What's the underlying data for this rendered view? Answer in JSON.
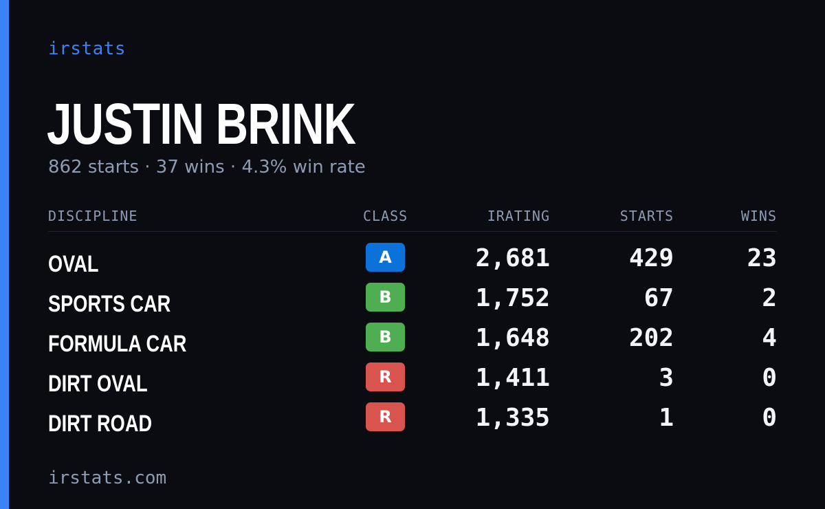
{
  "brand": {
    "label": "irstats",
    "color": "#3b82f6"
  },
  "player": {
    "name": "JUSTIN BRINK",
    "summary": "862 starts · 37 wins · 4.3% win rate"
  },
  "table": {
    "headers": {
      "discipline": "DISCIPLINE",
      "class": "CLASS",
      "irating": "IRATING",
      "starts": "STARTS",
      "wins": "WINS"
    },
    "rows": [
      {
        "discipline": "OVAL",
        "class": "A",
        "irating": "2,681",
        "starts": "429",
        "wins": "23"
      },
      {
        "discipline": "SPORTS CAR",
        "class": "B",
        "irating": "1,752",
        "starts": "67",
        "wins": "2"
      },
      {
        "discipline": "FORMULA CAR",
        "class": "B",
        "irating": "1,648",
        "starts": "202",
        "wins": "4"
      },
      {
        "discipline": "DIRT OVAL",
        "class": "R",
        "irating": "1,411",
        "starts": "3",
        "wins": "0"
      },
      {
        "discipline": "DIRT ROAD",
        "class": "R",
        "irating": "1,335",
        "starts": "1",
        "wins": "0"
      }
    ]
  },
  "class_colors": {
    "A": "#0a72d8",
    "B": "#4fae52",
    "R": "#d9534f"
  },
  "footer": {
    "url": "irstats.com"
  }
}
